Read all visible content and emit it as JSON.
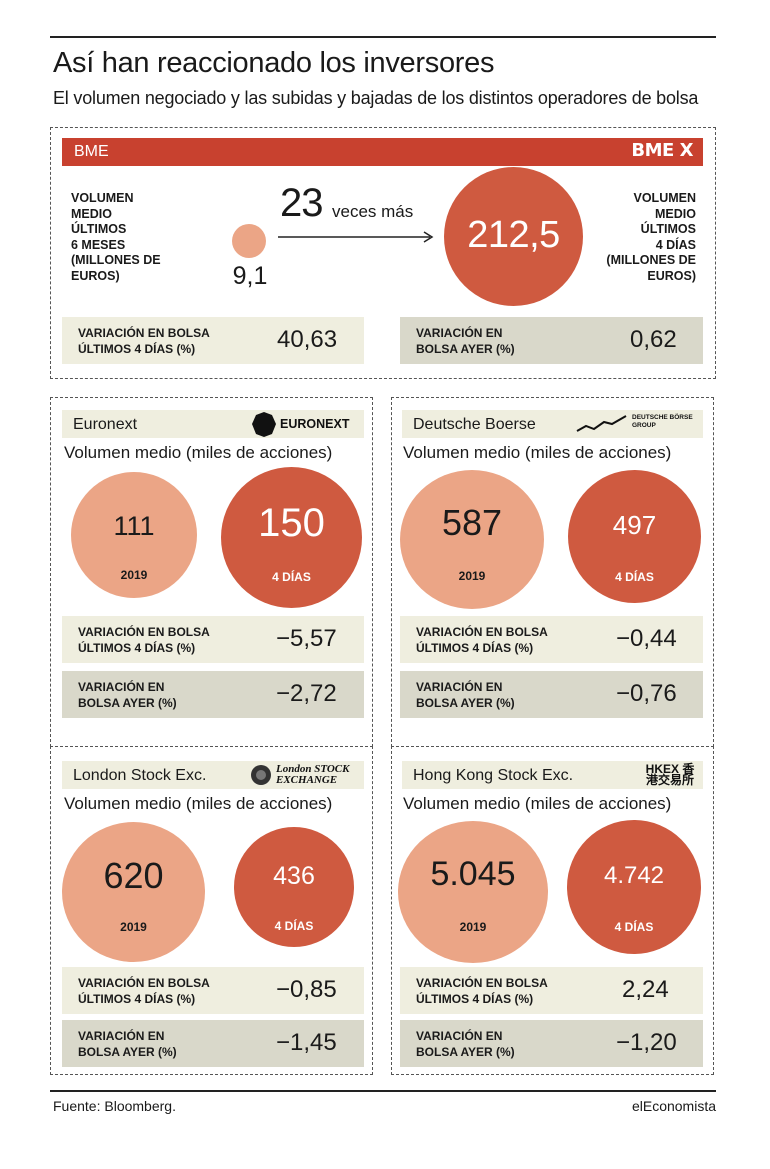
{
  "title": "Así han reaccionado los inversores",
  "subtitle": "El volumen negociado y las subidas y bajadas de los distintos operadores de bolsa",
  "bme": {
    "name": "BME",
    "logo_text": "BME X",
    "left_label": [
      "VOLUMEN",
      "MEDIO",
      "ÚLTIMOS",
      "6 MESES",
      "(MILLONES DE",
      "EUROS)"
    ],
    "right_label": [
      "VOLUMEN",
      "MEDIO",
      "ÚLTIMOS",
      "4 DÍAS",
      "(MILLONES DE",
      "EUROS)"
    ],
    "small_value": "9,1",
    "big_value": "212,5",
    "times_number": "23",
    "times_text": "veces más",
    "var4_label": [
      "VARIACIÓN EN BOLSA",
      "ÚLTIMOS 4 DÍAS (%)"
    ],
    "var4_value": "40,63",
    "var1_label": [
      "VARIACIÓN EN",
      "BOLSA AYER (%)"
    ],
    "var1_value": "0,62"
  },
  "exchanges": [
    {
      "name": "Euronext",
      "logo_text": "EURONEXT",
      "vol_title": "Volumen medio (miles de acciones)",
      "v2019": "111",
      "v4d": "150",
      "lab2019": "2019",
      "lab4d": "4 DÍAS",
      "var4_label": [
        "VARIACIÓN EN BOLSA",
        "ÚLTIMOS 4 DÍAS (%)"
      ],
      "var4_value": "−5,57",
      "var1_label": [
        "VARIACIÓN EN",
        "BOLSA AYER (%)"
      ],
      "var1_value": "−2,72"
    },
    {
      "name": "Deutsche Boerse",
      "logo_text": "DEUTSCHE BÖRSE GROUP",
      "vol_title": "Volumen medio (miles de acciones)",
      "v2019": "587",
      "v4d": "497",
      "lab2019": "2019",
      "lab4d": "4 DÍAS",
      "var4_label": [
        "VARIACIÓN EN BOLSA",
        "ÚLTIMOS 4 DÍAS (%)"
      ],
      "var4_value": "−0,44",
      "var1_label": [
        "VARIACIÓN EN",
        "BOLSA AYER (%)"
      ],
      "var1_value": "−0,76"
    },
    {
      "name": "London Stock Exc.",
      "logo_text": "London STOCK EXCHANGE",
      "vol_title": "Volumen medio (miles de acciones)",
      "v2019": "620",
      "v4d": "436",
      "lab2019": "2019",
      "lab4d": "4 DÍAS",
      "var4_label": [
        "VARIACIÓN EN BOLSA",
        "ÚLTIMOS 4 DÍAS (%)"
      ],
      "var4_value": "−0,85",
      "var1_label": [
        "VARIACIÓN EN",
        "BOLSA AYER (%)"
      ],
      "var1_value": "−1,45"
    },
    {
      "name": "Hong Kong Stock Exc.",
      "logo_text": "HKEX 香港交易所",
      "vol_title": "Volumen medio (miles de acciones)",
      "v2019": "5.045",
      "v4d": "4.742",
      "lab2019": "2019",
      "lab4d": "4 DÍAS",
      "var4_label": [
        "VARIACIÓN EN BOLSA",
        "ÚLTIMOS 4 DÍAS (%)"
      ],
      "var4_value": "2,24",
      "var1_label": [
        "VARIACIÓN EN",
        "BOLSA AYER (%)"
      ],
      "var1_value": "−1,20"
    }
  ],
  "source": "Fuente: Bloomberg.",
  "brand": "elEconomista",
  "colors": {
    "bme_red": "#c8412f",
    "circle_light": "#eba586",
    "circle_dark": "#cf5a40",
    "row_cream": "#efeedf",
    "row_grey": "#d9d8ca"
  },
  "chart_data": [
    {
      "type": "bar",
      "title": "BME",
      "categories": [
        "6 meses",
        "4 días"
      ],
      "values": [
        9.1,
        212.5
      ],
      "ylabel": "Volumen medio (millones de euros)",
      "variacion_4_dias": 40.63,
      "variacion_ayer": 0.62
    },
    {
      "type": "bar",
      "title": "Euronext",
      "categories": [
        "2019",
        "4 DÍAS"
      ],
      "values": [
        111,
        150
      ],
      "ylabel": "Volumen medio (miles de acciones)",
      "variacion_4_dias": -5.57,
      "variacion_ayer": -2.72
    },
    {
      "type": "bar",
      "title": "Deutsche Boerse",
      "categories": [
        "2019",
        "4 DÍAS"
      ],
      "values": [
        587,
        497
      ],
      "ylabel": "Volumen medio (miles de acciones)",
      "variacion_4_dias": -0.44,
      "variacion_ayer": -0.76
    },
    {
      "type": "bar",
      "title": "London Stock Exc.",
      "categories": [
        "2019",
        "4 DÍAS"
      ],
      "values": [
        620,
        436
      ],
      "ylabel": "Volumen medio (miles de acciones)",
      "variacion_4_dias": -0.85,
      "variacion_ayer": -1.45
    },
    {
      "type": "bar",
      "title": "Hong Kong Stock Exc.",
      "categories": [
        "2019",
        "4 DÍAS"
      ],
      "values": [
        5045,
        4742
      ],
      "ylabel": "Volumen medio (miles de acciones)",
      "variacion_4_dias": 2.24,
      "variacion_ayer": -1.2
    }
  ]
}
